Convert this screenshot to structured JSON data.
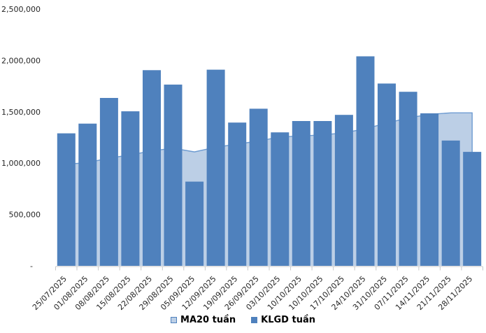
{
  "legend": {
    "items": [
      {
        "label": "MA20 tuần",
        "series": "ma20"
      },
      {
        "label": "KLGD tuần",
        "series": "klgd"
      }
    ]
  },
  "colors": {
    "bar_fill": "#4F81BD",
    "area_fill": "#BCCFE6",
    "area_border": "#6D9BD1",
    "axis_line": "#C8C8C8",
    "tick_text": "#262626",
    "background": "#FFFFFF"
  },
  "chart_data": {
    "type": "bar",
    "subtype": "area-behind-bars-combo",
    "title": "",
    "xlabel": "",
    "ylabel": "",
    "grid": false,
    "legend_position": "bottom",
    "ylim": [
      0,
      2500000
    ],
    "yticks": [
      {
        "value": 2500000,
        "label": "2,500,000"
      },
      {
        "value": 2000000,
        "label": "2,000,000"
      },
      {
        "value": 1500000,
        "label": "1,500,000"
      },
      {
        "value": 1000000,
        "label": "1,000,000"
      },
      {
        "value": 500000,
        "label": "500,000"
      },
      {
        "value": 0,
        "label": "-"
      }
    ],
    "categories": [
      "25/07/2025",
      "01/08/2025",
      "08/08/2025",
      "15/08/2025",
      "22/08/2025",
      "29/08/2025",
      "05/09/2025",
      "12/09/2025",
      "19/09/2025",
      "26/09/2025",
      "03/10/2025",
      "10/10/2025",
      "10/10/2025",
      "17/10/2025",
      "24/10/2025",
      "31/10/2025",
      "07/11/2025",
      "14/11/2025",
      "21/11/2025",
      "28/11/2025"
    ],
    "series": [
      {
        "id": "ma20",
        "name": "MA20 tuần",
        "type": "area",
        "color": "#BCCFE6",
        "border": "#6D9BD1",
        "values": [
          990000,
          1005000,
          1050000,
          1080000,
          1120000,
          1145000,
          1110000,
          1155000,
          1185000,
          1215000,
          1255000,
          1265000,
          1275000,
          1295000,
          1335000,
          1390000,
          1440000,
          1475000,
          1490000,
          1490000
        ]
      },
      {
        "id": "klgd",
        "name": "KLGD tuần",
        "type": "bar",
        "color": "#4F81BD",
        "values": [
          1290000,
          1385000,
          1635000,
          1505000,
          1905000,
          1765000,
          820000,
          1910000,
          1395000,
          1530000,
          1300000,
          1410000,
          1410000,
          1470000,
          2040000,
          1775000,
          1695000,
          1485000,
          1220000,
          1110000
        ]
      }
    ]
  }
}
